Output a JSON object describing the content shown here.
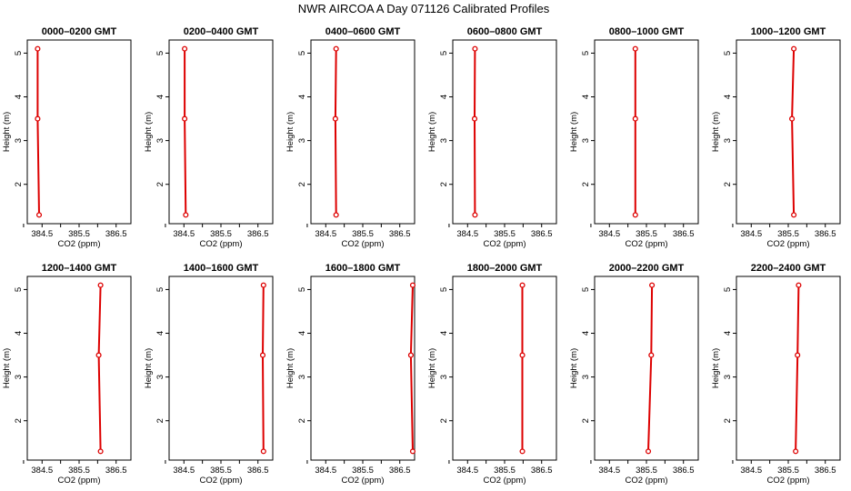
{
  "title": "NWR AIRCOA A  Day 071126  Calibrated Profiles",
  "chart_data": {
    "type": "line",
    "xlabel": "CO2 (ppm)",
    "ylabel": "Height (m)",
    "xlim": [
      384.1,
      386.9
    ],
    "ylim": [
      1.1,
      5.3
    ],
    "x_ticks": [
      "384.5",
      "385.5",
      "386.5"
    ],
    "y_ticks": [
      "2",
      "3",
      "4",
      "5"
    ],
    "heights": [
      1.3,
      3.5,
      5.1
    ],
    "line_color": "#dd0000",
    "panels": [
      {
        "title": "0000–0200 GMT",
        "co2": [
          384.42,
          384.38,
          384.38
        ]
      },
      {
        "title": "0200–0400 GMT",
        "co2": [
          384.55,
          384.52,
          384.52
        ]
      },
      {
        "title": "0400–0600 GMT",
        "co2": [
          384.78,
          384.76,
          384.78
        ]
      },
      {
        "title": "0600–0800 GMT",
        "co2": [
          384.7,
          384.69,
          384.7
        ]
      },
      {
        "title": "0800–1000 GMT",
        "co2": [
          385.2,
          385.2,
          385.2
        ]
      },
      {
        "title": "1000–1200 GMT",
        "co2": [
          385.65,
          385.6,
          385.65
        ]
      },
      {
        "title": "1200–1400 GMT",
        "co2": [
          386.08,
          386.03,
          386.08
        ]
      },
      {
        "title": "1400–1600 GMT",
        "co2": [
          386.65,
          386.63,
          386.65
        ]
      },
      {
        "title": "1600–1800 GMT",
        "co2": [
          386.85,
          386.8,
          386.85
        ]
      },
      {
        "title": "1800–2000 GMT",
        "co2": [
          385.98,
          385.98,
          385.98
        ]
      },
      {
        "title": "2000–2200 GMT",
        "co2": [
          385.55,
          385.63,
          385.65
        ]
      },
      {
        "title": "2200–2400 GMT",
        "co2": [
          385.7,
          385.75,
          385.78
        ]
      }
    ]
  }
}
